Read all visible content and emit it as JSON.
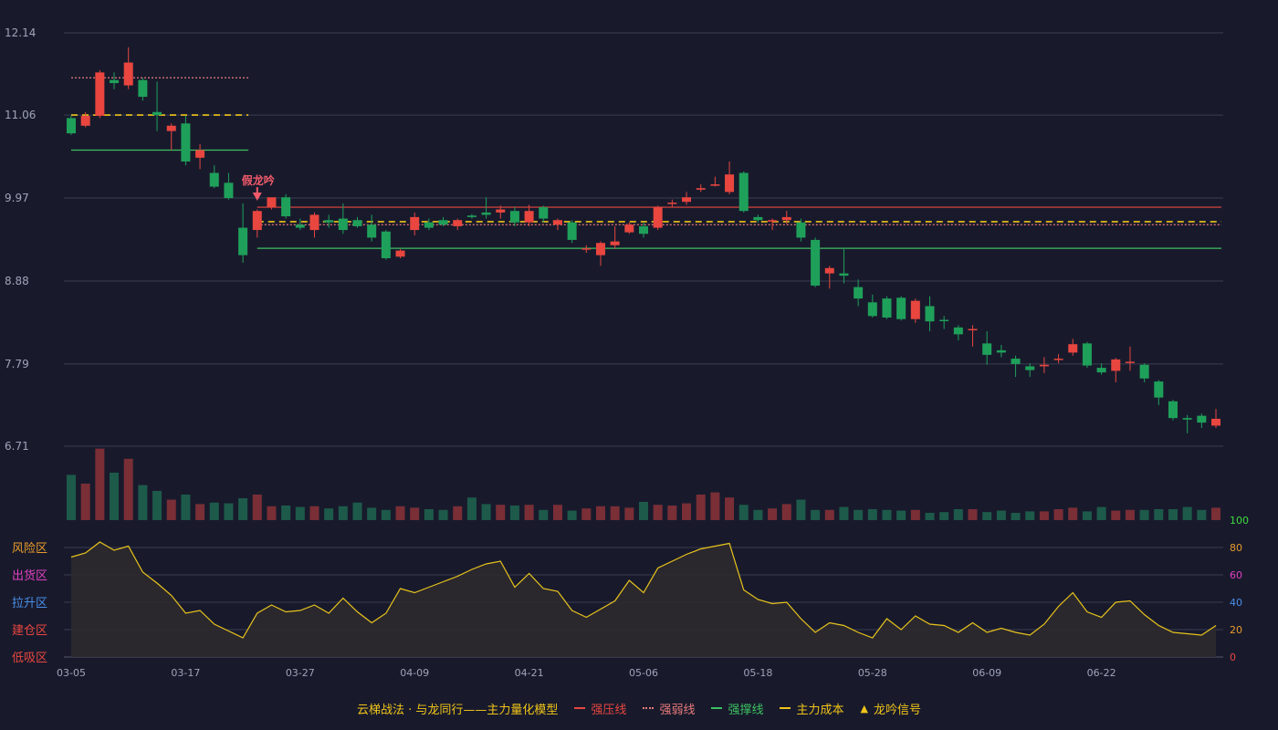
{
  "colors": {
    "background": "#181a2c",
    "grid": "#3a3c50",
    "up": "#e8463f",
    "down": "#1fa05a",
    "vol_up": "#7a2e36",
    "vol_down": "#1d5a4a",
    "pressure": "#e8463f",
    "weak": "#e87a7a",
    "support": "#3cc060",
    "cost": "#f0c419",
    "osc_line": "#e8c41c",
    "osc_fill": "#2d2a2e",
    "signal": "#f05a6a",
    "axis_text": "#a0a3b8"
  },
  "chart_data": {
    "type": "candlestick",
    "price_axis": {
      "ylim": [
        6.71,
        12.14
      ],
      "ticks": [
        "12.14",
        "11.06",
        "9.97",
        "8.88",
        "7.79",
        "6.71"
      ]
    },
    "x_ticks": [
      "03-05",
      "03-17",
      "03-27",
      "04-09",
      "04-21",
      "05-06",
      "05-18",
      "05-28",
      "06-09",
      "06-22"
    ],
    "x_tick_index": [
      0,
      8,
      16,
      24,
      32,
      40,
      48,
      56,
      64,
      72
    ],
    "candles": [
      [
        11.02,
        10.82,
        11.05,
        10.8
      ],
      [
        10.92,
        11.05,
        11.1,
        10.9
      ],
      [
        11.05,
        11.62,
        11.65,
        11.02
      ],
      [
        11.52,
        11.48,
        11.62,
        11.4
      ],
      [
        11.45,
        11.75,
        11.95,
        11.4
      ],
      [
        11.52,
        11.3,
        11.55,
        11.25
      ],
      [
        11.1,
        11.06,
        11.5,
        10.85
      ],
      [
        10.85,
        10.92,
        10.95,
        10.6
      ],
      [
        10.95,
        10.45,
        11.05,
        10.4
      ],
      [
        10.5,
        10.6,
        10.68,
        10.35
      ],
      [
        10.3,
        10.12,
        10.4,
        10.1
      ],
      [
        10.17,
        9.97,
        10.3,
        9.95
      ],
      [
        9.58,
        9.22,
        9.9,
        9.12
      ],
      [
        9.55,
        9.8,
        9.82,
        9.45
      ],
      [
        9.85,
        9.98,
        9.97,
        9.82
      ],
      [
        9.98,
        9.73,
        10.02,
        9.7
      ],
      [
        9.62,
        9.58,
        9.7,
        9.55
      ],
      [
        9.55,
        9.75,
        9.78,
        9.45
      ],
      [
        9.68,
        9.65,
        9.75,
        9.58
      ],
      [
        9.7,
        9.55,
        9.9,
        9.5
      ],
      [
        9.68,
        9.6,
        9.72,
        9.58
      ],
      [
        9.62,
        9.45,
        9.75,
        9.4
      ],
      [
        9.53,
        9.18,
        9.55,
        9.16
      ],
      [
        9.2,
        9.28,
        9.3,
        9.18
      ],
      [
        9.55,
        9.72,
        9.78,
        9.48
      ],
      [
        9.65,
        9.58,
        9.7,
        9.55
      ],
      [
        9.68,
        9.62,
        9.72,
        9.6
      ],
      [
        9.6,
        9.68,
        9.7,
        9.55
      ],
      [
        9.74,
        9.72,
        9.76,
        9.7
      ],
      [
        9.78,
        9.75,
        9.98,
        9.7
      ],
      [
        9.78,
        9.82,
        9.87,
        9.7
      ],
      [
        9.8,
        9.65,
        9.85,
        9.6
      ],
      [
        9.65,
        9.8,
        9.88,
        9.6
      ],
      [
        9.85,
        9.7,
        9.87,
        9.65
      ],
      [
        9.62,
        9.68,
        9.7,
        9.55
      ],
      [
        9.65,
        9.42,
        9.68,
        9.38
      ],
      [
        9.3,
        9.31,
        9.35,
        9.25
      ],
      [
        9.22,
        9.38,
        9.4,
        9.08
      ],
      [
        9.35,
        9.4,
        9.6,
        9.3
      ],
      [
        9.52,
        9.62,
        9.65,
        9.5
      ],
      [
        9.6,
        9.5,
        9.65,
        9.45
      ],
      [
        9.58,
        9.85,
        9.87,
        9.55
      ],
      [
        9.9,
        9.91,
        9.95,
        9.85
      ],
      [
        9.92,
        9.98,
        10.05,
        9.88
      ],
      [
        10.08,
        10.1,
        10.15,
        10.05
      ],
      [
        10.14,
        10.15,
        10.25,
        10.12
      ],
      [
        10.05,
        10.28,
        10.45,
        10.02
      ],
      [
        10.3,
        9.8,
        10.32,
        9.78
      ],
      [
        9.72,
        9.68,
        9.75,
        9.65
      ],
      [
        9.66,
        9.68,
        9.7,
        9.55
      ],
      [
        9.68,
        9.72,
        9.8,
        9.63
      ],
      [
        9.65,
        9.45,
        9.7,
        9.4
      ],
      [
        9.42,
        8.82,
        9.45,
        8.8
      ],
      [
        8.98,
        9.05,
        9.08,
        8.78
      ],
      [
        8.98,
        8.95,
        9.3,
        8.85
      ],
      [
        8.8,
        8.65,
        8.9,
        8.55
      ],
      [
        8.6,
        8.42,
        8.7,
        8.4
      ],
      [
        8.65,
        8.4,
        8.68,
        8.38
      ],
      [
        8.66,
        8.38,
        8.68,
        8.36
      ],
      [
        8.38,
        8.62,
        8.65,
        8.33
      ],
      [
        8.55,
        8.35,
        8.68,
        8.22
      ],
      [
        8.37,
        8.36,
        8.42,
        8.25
      ],
      [
        8.27,
        8.18,
        8.3,
        8.1
      ],
      [
        8.24,
        8.25,
        8.3,
        8.02
      ],
      [
        8.06,
        7.91,
        8.22,
        7.78
      ],
      [
        7.97,
        7.94,
        8.04,
        7.88
      ],
      [
        7.86,
        7.79,
        7.9,
        7.62
      ],
      [
        7.76,
        7.71,
        7.8,
        7.62
      ],
      [
        7.76,
        7.78,
        7.88,
        7.67
      ],
      [
        7.86,
        7.86,
        7.92,
        7.8
      ],
      [
        7.94,
        8.05,
        8.12,
        7.9
      ],
      [
        8.06,
        7.77,
        8.08,
        7.74
      ],
      [
        7.74,
        7.68,
        7.8,
        7.65
      ],
      [
        7.7,
        7.85,
        7.87,
        7.55
      ],
      [
        7.82,
        7.82,
        8.02,
        7.7
      ],
      [
        7.78,
        7.6,
        7.8,
        7.55
      ],
      [
        7.56,
        7.35,
        7.58,
        7.25
      ],
      [
        7.3,
        7.08,
        7.32,
        7.05
      ],
      [
        7.08,
        7.06,
        7.12,
        6.88
      ],
      [
        7.11,
        7.02,
        7.14,
        6.95
      ],
      [
        6.98,
        7.07,
        7.2,
        6.95
      ]
    ],
    "volume_axis": {
      "ylim": [
        0,
        100
      ],
      "tick": "100"
    },
    "volume": [
      62,
      50,
      98,
      65,
      84,
      48,
      40,
      28,
      35,
      22,
      24,
      23,
      30,
      35,
      19,
      20,
      18,
      19,
      16,
      19,
      24,
      17,
      14,
      19,
      17,
      15,
      14,
      19,
      31,
      22,
      21,
      20,
      21,
      14,
      21,
      13,
      16,
      19,
      19,
      17,
      25,
      21,
      20,
      23,
      35,
      38,
      31,
      21,
      14,
      16,
      22,
      28,
      14,
      14,
      18,
      14,
      15,
      14,
      13,
      14,
      10,
      11,
      15,
      15,
      11,
      13,
      10,
      12,
      12,
      15,
      17,
      12,
      18,
      13,
      14,
      14,
      15,
      15,
      18,
      14,
      17
    ],
    "oscillator": {
      "ylim": [
        0,
        100
      ],
      "ticks": [
        "100",
        "80",
        "60",
        "40",
        "20",
        "0"
      ],
      "zones": [
        "风险区",
        "出货区",
        "拉升区",
        "建仓区",
        "低吸区"
      ],
      "values": [
        73,
        76,
        84,
        78,
        81,
        62,
        54,
        45,
        32,
        34,
        24,
        19,
        14,
        32,
        38,
        33,
        34,
        38,
        32,
        43,
        33,
        25,
        32,
        50,
        47,
        51,
        55,
        59,
        64,
        68,
        70,
        51,
        61,
        50,
        48,
        34,
        29,
        35,
        41,
        56,
        47,
        65,
        70,
        75,
        79,
        81,
        83,
        49,
        42,
        39,
        40,
        28,
        18,
        25,
        23,
        18,
        14,
        28,
        20,
        30,
        24,
        23,
        18,
        25,
        18,
        21,
        18,
        16,
        24,
        37,
        47,
        33,
        29,
        40,
        41,
        31,
        23,
        18,
        17,
        16,
        23
      ]
    },
    "levels": [
      {
        "series": "强弱线",
        "value": 11.55,
        "from": 0,
        "to": 12,
        "style": "dotted"
      },
      {
        "series": "主力成本",
        "value": 11.06,
        "from": 0,
        "to": 12,
        "style": "dashed"
      },
      {
        "series": "强撑线",
        "value": 10.6,
        "from": 0,
        "to": 12,
        "style": "solid-green"
      },
      {
        "series": "强压线",
        "value": 9.85,
        "from": 13,
        "to": 80,
        "style": "solid-red"
      },
      {
        "series": "主力成本",
        "value": 9.66,
        "from": 13,
        "to": 80,
        "style": "dashed"
      },
      {
        "series": "强弱线",
        "value": 9.62,
        "from": 13,
        "to": 80,
        "style": "dotted"
      },
      {
        "series": "强撑线",
        "value": 9.31,
        "from": 13,
        "to": 80,
        "style": "solid-green"
      }
    ],
    "signal": {
      "label": "假龙吟",
      "index": 13,
      "price": 9.85
    },
    "legend": [
      {
        "label": "云梯战法 · 与龙同行——主力量化模型",
        "kind": "text"
      },
      {
        "label": "强压线",
        "kind": "solid-red"
      },
      {
        "label": "强弱线",
        "kind": "dotted"
      },
      {
        "label": "强撑线",
        "kind": "solid-green"
      },
      {
        "label": "主力成本",
        "kind": "dashed"
      },
      {
        "label": "龙吟信号",
        "kind": "triangle"
      }
    ]
  }
}
